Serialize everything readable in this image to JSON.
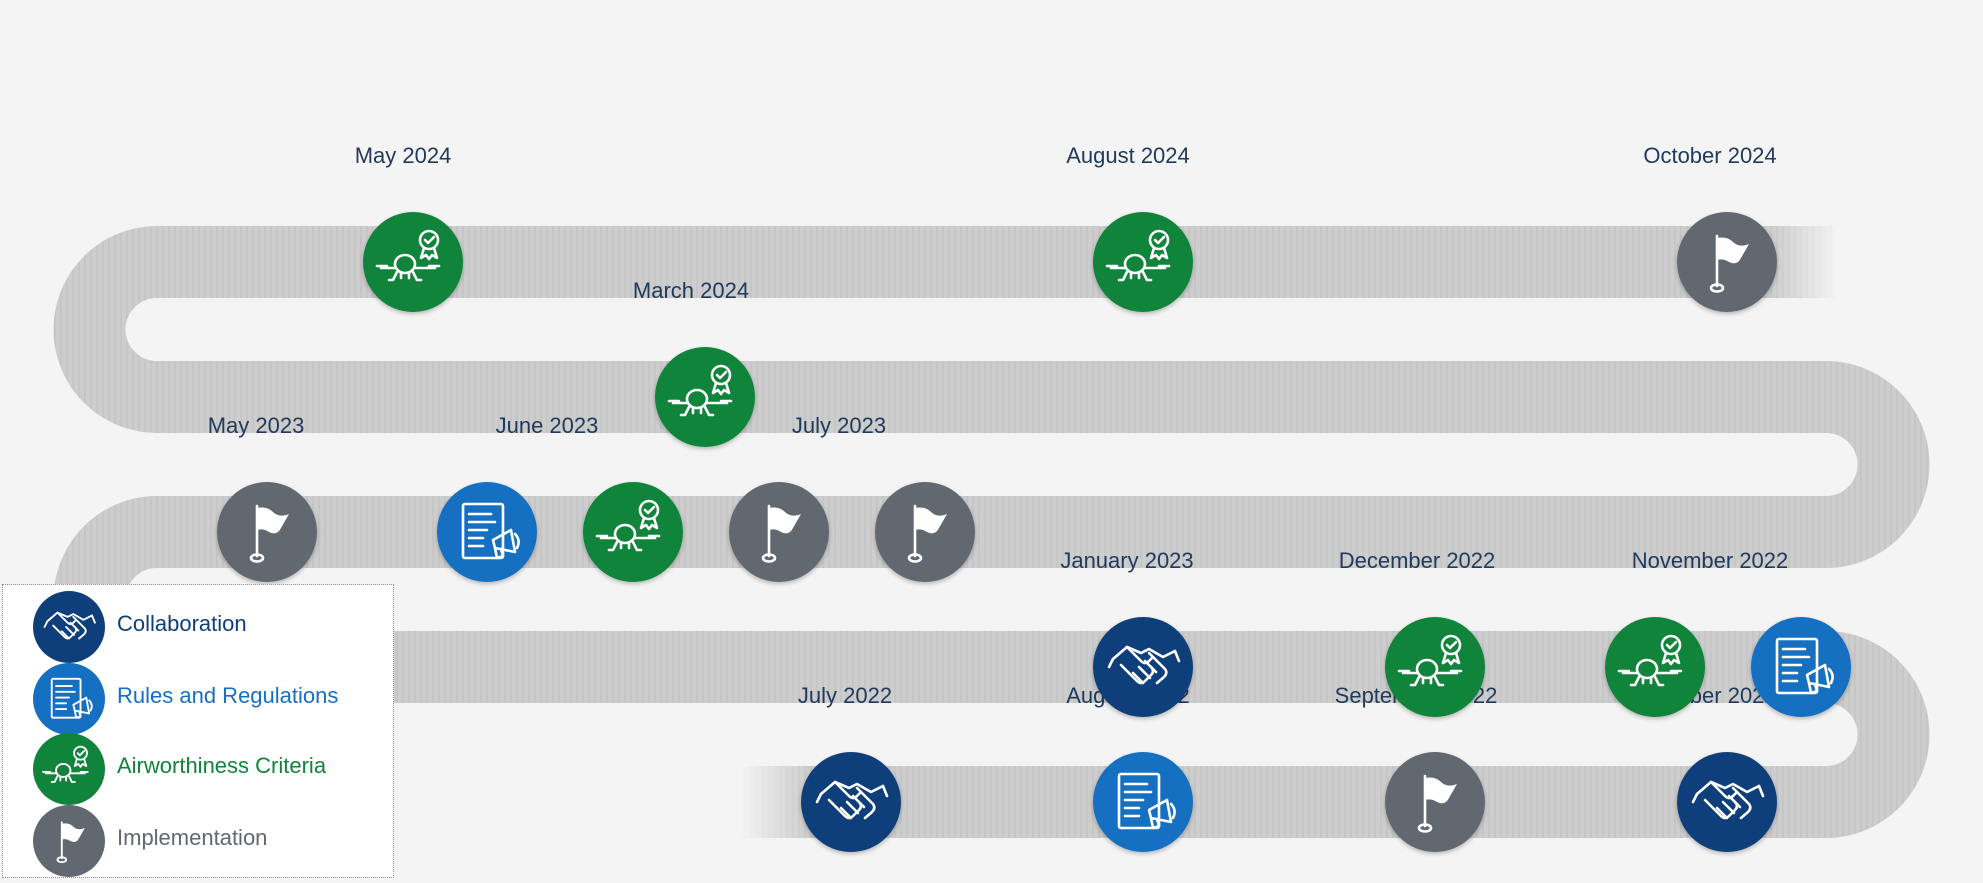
{
  "colors": {
    "collaboration": "#0f3f7a",
    "rules": "#1670c2",
    "airworthiness": "#11843b",
    "implementation": "#616870",
    "road": "#cdcdcd",
    "background": "#f4f4f4",
    "date_text": "#1f3a5a"
  },
  "categories": {
    "collaboration": {
      "label": "Collaboration",
      "icon": "handshake-icon"
    },
    "rules": {
      "label": "Rules and Regulations",
      "icon": "document-megaphone-icon"
    },
    "airworthiness": {
      "label": "Airworthiness Criteria",
      "icon": "drone-certified-icon"
    },
    "implementation": {
      "label": "Implementation",
      "icon": "flag-icon"
    }
  },
  "legend": [
    "collaboration",
    "rules",
    "airworthiness",
    "implementation"
  ],
  "rows": [
    {
      "labels": [
        {
          "text": "July 2022",
          "x": 845
        },
        {
          "text": "August 2022",
          "x": 1128
        },
        {
          "text": "September 2022",
          "x": 1416
        },
        {
          "text": "October 2022",
          "x": 1710
        }
      ],
      "milestones": [
        {
          "category": "collaboration",
          "x": 851
        },
        {
          "category": "rules",
          "x": 1143
        },
        {
          "category": "implementation",
          "x": 1435
        },
        {
          "category": "collaboration",
          "x": 1727
        }
      ]
    },
    {
      "labels": [
        {
          "text": "January 2023",
          "x": 1127
        },
        {
          "text": "December 2022",
          "x": 1417
        },
        {
          "text": "November 2022",
          "x": 1710
        }
      ],
      "milestones": [
        {
          "category": "collaboration",
          "x": 1143
        },
        {
          "category": "airworthiness",
          "x": 1435
        },
        {
          "category": "airworthiness",
          "x": 1655
        },
        {
          "category": "rules",
          "x": 1801
        }
      ]
    },
    {
      "labels": [
        {
          "text": "May 2023",
          "x": 256
        },
        {
          "text": "June 2023",
          "x": 547
        },
        {
          "text": "July 2023",
          "x": 839
        }
      ],
      "milestones": [
        {
          "category": "implementation",
          "x": 267
        },
        {
          "category": "rules",
          "x": 487
        },
        {
          "category": "airworthiness",
          "x": 633
        },
        {
          "category": "implementation",
          "x": 779
        },
        {
          "category": "implementation",
          "x": 925
        }
      ]
    },
    {
      "labels": [
        {
          "text": "March 2024",
          "x": 691
        }
      ],
      "milestones": [
        {
          "category": "airworthiness",
          "x": 705
        }
      ]
    },
    {
      "labels": [
        {
          "text": "May 2024",
          "x": 403
        },
        {
          "text": "August 2024",
          "x": 1128
        },
        {
          "text": "October 2024",
          "x": 1710
        }
      ],
      "milestones": [
        {
          "category": "airworthiness",
          "x": 413
        },
        {
          "category": "airworthiness",
          "x": 1143
        },
        {
          "category": "implementation",
          "x": 1727
        }
      ]
    }
  ]
}
